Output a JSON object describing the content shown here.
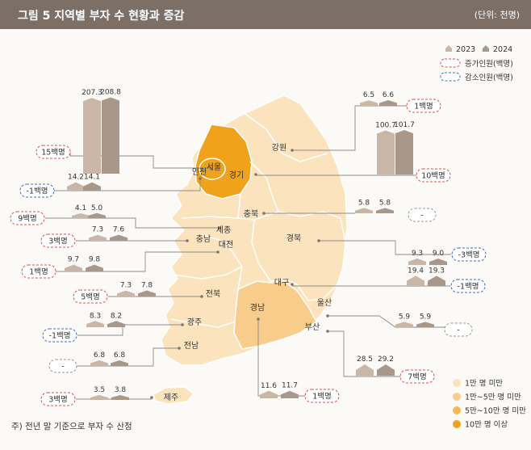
{
  "header": {
    "title": "그림 5  지역별 부자 수 현황과 증감",
    "unit": "(단위: 천명)"
  },
  "note": "주) 전년 말 기준으로 부자 수 산정",
  "legend": {
    "years": [
      "2023",
      "2024"
    ],
    "increase": "증가인원(백명)",
    "decrease": "감소인원(백명)",
    "tiers": [
      "1만 명 미만",
      "1만~5만 명 미만",
      "5만~10만 명 미만",
      "10만 명 이상"
    ]
  },
  "colors": {
    "bar2023": "#c9b6a6",
    "bar2024": "#a8978b",
    "tier1": "#fbe3bd",
    "tier2": "#f8cc8a",
    "tier3": "#f6b651",
    "tier4": "#f0a21a",
    "increase": "#d9534f",
    "decrease": "#3f6fb5"
  },
  "chart_data": {
    "type": "bar",
    "series": [
      {
        "name": "2023"
      },
      {
        "name": "2024"
      }
    ],
    "regions": [
      {
        "name": "서울",
        "v2023": 207.3,
        "v2024": 208.8,
        "change": "15백명",
        "dir": "up"
      },
      {
        "name": "인천",
        "v2023": 14.2,
        "v2024": 14.1,
        "change": "-1백명",
        "dir": "down"
      },
      {
        "name": "경기",
        "v2023": 100.7,
        "v2024": 101.7,
        "change": "10백명",
        "dir": "up"
      },
      {
        "name": "강원",
        "v2023": 6.5,
        "v2024": 6.6,
        "change": "1백명",
        "dir": "up"
      },
      {
        "name": "세종",
        "v2023": 4.1,
        "v2024": 5.0,
        "change": "9백명",
        "dir": "up"
      },
      {
        "name": "충북",
        "v2023": 5.8,
        "v2024": 5.8,
        "change": "-",
        "dir": "none"
      },
      {
        "name": "충남",
        "v2023": 7.3,
        "v2024": 7.6,
        "change": "3백명",
        "dir": "up"
      },
      {
        "name": "대전",
        "v2023": 9.7,
        "v2024": 9.8,
        "change": "1백명",
        "dir": "up"
      },
      {
        "name": "경북",
        "v2023": 9.3,
        "v2024": 9.0,
        "change": "-3백명",
        "dir": "down"
      },
      {
        "name": "대구",
        "v2023": 19.4,
        "v2024": 19.3,
        "change": "-1백명",
        "dir": "down"
      },
      {
        "name": "전북",
        "v2023": 7.3,
        "v2024": 7.8,
        "change": "5백명",
        "dir": "up"
      },
      {
        "name": "울산",
        "v2023": 5.9,
        "v2024": 5.9,
        "change": "-",
        "dir": "none"
      },
      {
        "name": "광주",
        "v2023": 8.3,
        "v2024": 8.2,
        "change": "-1백명",
        "dir": "down"
      },
      {
        "name": "부산",
        "v2023": 28.5,
        "v2024": 29.2,
        "change": "7백명",
        "dir": "up"
      },
      {
        "name": "전남",
        "v2023": 6.8,
        "v2024": 6.8,
        "change": "-",
        "dir": "none"
      },
      {
        "name": "경남",
        "v2023": 11.6,
        "v2024": 11.7,
        "change": "1백명",
        "dir": "up"
      },
      {
        "name": "제주",
        "v2023": 3.5,
        "v2024": 3.8,
        "change": "3백명",
        "dir": "up"
      }
    ]
  }
}
